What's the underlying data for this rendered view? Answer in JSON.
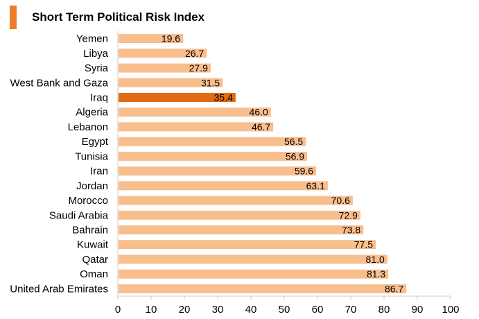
{
  "chart_data": {
    "type": "bar",
    "orientation": "horizontal",
    "title": "Short Term Political Risk Index",
    "categories": [
      "Yemen",
      "Libya",
      "Syria",
      "West Bank and Gaza",
      "Iraq",
      "Algeria",
      "Lebanon",
      "Egypt",
      "Tunisia",
      "Iran",
      "Jordan",
      "Morocco",
      "Saudi Arabia",
      "Bahrain",
      "Kuwait",
      "Qatar",
      "Oman",
      "United Arab Emirates"
    ],
    "values": [
      19.6,
      26.7,
      27.9,
      31.5,
      35.4,
      46.0,
      46.7,
      56.5,
      56.9,
      59.6,
      63.1,
      70.6,
      72.9,
      73.8,
      77.5,
      81.0,
      81.3,
      86.7
    ],
    "value_labels": [
      "19.6",
      "26.7",
      "27.9",
      "31.5",
      "35.4",
      "46.0",
      "46.7",
      "56.5",
      "56.9",
      "59.6",
      "63.1",
      "70.6",
      "72.9",
      "73.8",
      "77.5",
      "81.0",
      "81.3",
      "86.7"
    ],
    "highlight": "Iraq",
    "xlim": [
      0,
      100
    ],
    "xticks": [
      0,
      10,
      20,
      30,
      40,
      50,
      60,
      70,
      80,
      90,
      100
    ],
    "xlabel": "",
    "ylabel": "",
    "grid": false,
    "legend": "none"
  },
  "colors": {
    "bar": "#F9BE8E",
    "highlight_bar": "#E06C14",
    "title_accent": "#F07C2A",
    "axis": "#C8C8C8"
  }
}
